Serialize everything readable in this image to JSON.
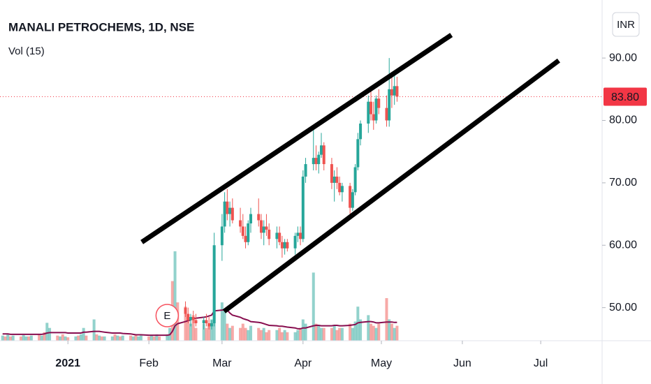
{
  "chart_data": {
    "type": "candlestick",
    "title": "MANALI PETROCHEMS, 1D, NSE",
    "subtitle": "Vol (15)",
    "currency": "INR",
    "xlim": [
      -26,
      204.5
    ],
    "ylim": [
      44.7,
      99.3
    ],
    "xticks": [
      {
        "value": 0,
        "label": "2021"
      },
      {
        "value": 31,
        "label": "Feb"
      },
      {
        "value": 59,
        "label": "Mar"
      },
      {
        "value": 90,
        "label": "Apr"
      },
      {
        "value": 120,
        "label": "May"
      },
      {
        "value": 151,
        "label": "Jun"
      },
      {
        "value": 181,
        "label": "Jul"
      }
    ],
    "yticks": [
      {
        "value": 50,
        "label": "50.00"
      },
      {
        "value": 60,
        "label": "60.00"
      },
      {
        "value": 70,
        "label": "70.00"
      },
      {
        "value": 80,
        "label": "80.00"
      },
      {
        "value": 90,
        "label": "90.00"
      }
    ],
    "up_color": "#26a69a",
    "down_color": "#ef5350",
    "candles": {
      "x": [
        45,
        46,
        47,
        48,
        49,
        52,
        53,
        54,
        55,
        56,
        59,
        60,
        61,
        62,
        63,
        66,
        67,
        68,
        69,
        70,
        73,
        74,
        75,
        76,
        77,
        80,
        81,
        82,
        83,
        84,
        87,
        88,
        89,
        90,
        91,
        94,
        95,
        96,
        97,
        98,
        101,
        102,
        103,
        104,
        105,
        108,
        109,
        110,
        111,
        112,
        115,
        116,
        117,
        118,
        119,
        122,
        123,
        124,
        125,
        126
      ],
      "open": [
        50,
        49,
        48,
        48.5,
        48,
        47.5,
        48,
        47.5,
        47,
        47.5,
        60,
        63,
        67,
        65,
        66,
        64,
        63,
        61.5,
        60.5,
        63.5,
        65,
        64,
        62,
        63,
        62.5,
        61,
        62,
        60.5,
        59.5,
        60.5,
        59.5,
        61.5,
        62,
        61,
        71,
        73,
        74,
        73,
        74.5,
        76,
        73,
        70,
        71,
        70,
        68.5,
        69.5,
        66,
        68.5,
        72.5,
        77,
        79.5,
        83,
        81,
        80,
        83.5,
        82,
        80,
        85,
        84,
        85.5
      ],
      "high": [
        51,
        50,
        49,
        49.5,
        49,
        48.5,
        49,
        48.5,
        48,
        62,
        65,
        68.5,
        69,
        67,
        67.5,
        66,
        65,
        63,
        64,
        66,
        67.5,
        65,
        64,
        65,
        63.5,
        63,
        63,
        61.5,
        61,
        61,
        62,
        63,
        63,
        72,
        74,
        78.5,
        76,
        75,
        78,
        76.5,
        74,
        72,
        72.5,
        71,
        70,
        70,
        69,
        73,
        78,
        80,
        84,
        85,
        83,
        84,
        85,
        84,
        90,
        87,
        87.5,
        87
      ],
      "low": [
        48.5,
        47.5,
        47,
        47.5,
        47,
        46.5,
        47,
        46.5,
        46.5,
        47,
        57.5,
        62,
        64,
        63,
        63.5,
        62,
        61,
        59.5,
        60,
        62,
        63,
        61,
        60,
        61.5,
        60,
        59.5,
        60,
        58,
        58.5,
        59,
        58.5,
        60.5,
        60,
        60.5,
        70,
        72,
        72,
        71.5,
        74,
        72,
        69,
        67,
        69,
        68,
        67,
        65,
        65.5,
        68,
        72,
        76,
        78,
        80,
        78.5,
        79.5,
        81,
        79,
        79,
        82,
        82.5,
        83
      ],
      "close": [
        49,
        48,
        48.5,
        48,
        47.5,
        48,
        47.5,
        47,
        47.5,
        60,
        63,
        67,
        65,
        66,
        64,
        63,
        61.5,
        60.5,
        63.5,
        65,
        64,
        62,
        63,
        62.5,
        61,
        62,
        60.5,
        59.5,
        60.5,
        59.5,
        61.5,
        62,
        61,
        71,
        73,
        74,
        73,
        74.5,
        76,
        73,
        70,
        71,
        70,
        68.5,
        69.5,
        66,
        68.5,
        72.5,
        77,
        79.5,
        83,
        81,
        80,
        83.5,
        82,
        80,
        85,
        84,
        85.5,
        83.8
      ]
    },
    "volume": {
      "ylim": [
        0,
        8
      ],
      "ma_color": "#880e4f",
      "x": [
        -25,
        -24,
        -23,
        -22,
        -21,
        -18,
        -17,
        -16,
        -15,
        -14,
        -11,
        -10,
        -9,
        -8,
        -7,
        -4,
        -3,
        -2,
        -1,
        0,
        3,
        4,
        5,
        6,
        7,
        10,
        11,
        12,
        13,
        14,
        17,
        18,
        19,
        20,
        21,
        24,
        25,
        26,
        27,
        28,
        31,
        32,
        33,
        34,
        35,
        38,
        39,
        40,
        41,
        42,
        45,
        46,
        47,
        48,
        49,
        52,
        53,
        54,
        55,
        56,
        59,
        60,
        61,
        62,
        63,
        66,
        67,
        68,
        69,
        70,
        73,
        74,
        75,
        76,
        77,
        80,
        81,
        82,
        83,
        84,
        87,
        88,
        89,
        90,
        91,
        94,
        95,
        96,
        97,
        98,
        101,
        102,
        103,
        104,
        105,
        108,
        109,
        110,
        111,
        112,
        115,
        116,
        117,
        118,
        119,
        122,
        123,
        124,
        125,
        126
      ],
      "values": [
        0.12,
        0.1,
        0.15,
        0.1,
        0.12,
        0.1,
        0.13,
        0.1,
        0.1,
        0.12,
        0.15,
        0.12,
        0.2,
        0.42,
        0.3,
        0.12,
        0.1,
        0.15,
        0.1,
        0.08,
        0.1,
        0.12,
        0.15,
        0.3,
        0.12,
        0.5,
        0.15,
        0.12,
        0.1,
        0.1,
        0.1,
        0.15,
        0.12,
        0.1,
        0.12,
        0.12,
        0.1,
        0.15,
        0.1,
        0.12,
        0.1,
        0.12,
        0.1,
        0.15,
        0.1,
        0.15,
        0.3,
        1.4,
        2.1,
        0.9,
        0.8,
        0.5,
        0.4,
        0.6,
        0.3,
        0.4,
        0.3,
        0.35,
        0.5,
        1.9,
        0.9,
        0.7,
        0.4,
        0.3,
        0.35,
        0.3,
        0.4,
        0.3,
        0.25,
        0.35,
        0.3,
        0.25,
        0.3,
        0.2,
        0.25,
        0.25,
        0.3,
        0.2,
        0.25,
        0.2,
        0.2,
        0.25,
        0.3,
        0.5,
        0.4,
        1.6,
        0.4,
        0.35,
        0.3,
        0.3,
        0.3,
        0.35,
        0.25,
        0.3,
        0.3,
        0.4,
        0.3,
        0.45,
        0.8,
        0.5,
        0.6,
        0.4,
        0.35,
        0.3,
        0.4,
        1.0,
        0.5,
        0.4,
        0.3,
        0.35
      ],
      "up": [
        true,
        false,
        true,
        false,
        true,
        false,
        true,
        true,
        false,
        true,
        false,
        true,
        false,
        true,
        true,
        false,
        true,
        false,
        true,
        false,
        true,
        false,
        true,
        true,
        false,
        true,
        false,
        true,
        false,
        true,
        true,
        false,
        true,
        false,
        true,
        false,
        true,
        false,
        true,
        true,
        false,
        true,
        false,
        true,
        false,
        true,
        true,
        false,
        true,
        false,
        false,
        false,
        true,
        false,
        false,
        true,
        false,
        false,
        true,
        true,
        true,
        true,
        false,
        true,
        false,
        false,
        false,
        false,
        true,
        true,
        false,
        false,
        true,
        false,
        false,
        true,
        false,
        false,
        true,
        false,
        true,
        true,
        false,
        true,
        true,
        true,
        false,
        true,
        true,
        false,
        false,
        true,
        false,
        false,
        true,
        false,
        true,
        true,
        true,
        true,
        true,
        false,
        false,
        true,
        false,
        false,
        true,
        false,
        true,
        false
      ],
      "ma": [
        0.16,
        0.16,
        0.16,
        0.15,
        0.15,
        0.15,
        0.15,
        0.15,
        0.15,
        0.15,
        0.15,
        0.15,
        0.16,
        0.18,
        0.19,
        0.19,
        0.19,
        0.19,
        0.19,
        0.18,
        0.18,
        0.18,
        0.18,
        0.2,
        0.2,
        0.22,
        0.22,
        0.22,
        0.21,
        0.2,
        0.18,
        0.18,
        0.18,
        0.18,
        0.17,
        0.16,
        0.15,
        0.14,
        0.14,
        0.14,
        0.13,
        0.13,
        0.13,
        0.13,
        0.13,
        0.13,
        0.14,
        0.22,
        0.35,
        0.4,
        0.45,
        0.47,
        0.49,
        0.52,
        0.53,
        0.55,
        0.56,
        0.58,
        0.6,
        0.7,
        0.72,
        0.73,
        0.72,
        0.65,
        0.6,
        0.55,
        0.52,
        0.5,
        0.48,
        0.45,
        0.43,
        0.42,
        0.4,
        0.38,
        0.36,
        0.35,
        0.34,
        0.34,
        0.33,
        0.32,
        0.3,
        0.28,
        0.28,
        0.3,
        0.3,
        0.35,
        0.36,
        0.36,
        0.35,
        0.35,
        0.35,
        0.36,
        0.36,
        0.35,
        0.35,
        0.36,
        0.37,
        0.38,
        0.42,
        0.43,
        0.45,
        0.45,
        0.44,
        0.42,
        0.42,
        0.44,
        0.44,
        0.44,
        0.43,
        0.43
      ]
    },
    "trend_lines": [
      {
        "color": "#000000",
        "x": [
          28.3,
          146.8
        ],
        "y": [
          60.5,
          93.7
        ]
      },
      {
        "color": "#000000",
        "x": [
          59.8,
          187.9
        ],
        "y": [
          49.4,
          89.6
        ]
      }
    ],
    "last_price": 83.8,
    "last_price_label": "83.80",
    "last_price_color": "#f23645",
    "earnings": {
      "label": "E",
      "x": 38
    }
  }
}
